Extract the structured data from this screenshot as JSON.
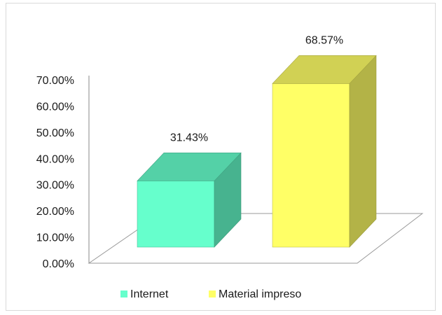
{
  "chart_data": {
    "type": "bar",
    "categories": [
      "Internet",
      "Material impreso"
    ],
    "values": [
      31.43,
      68.57
    ],
    "data_labels": [
      "31.43%",
      "68.57%"
    ],
    "ylim": [
      0,
      70
    ],
    "y_ticks": [
      "0.00%",
      "10.00%",
      "20.00%",
      "30.00%",
      "40.00%",
      "50.00%",
      "60.00%",
      "70.00%"
    ],
    "legend": {
      "placement": "bottom",
      "entries": [
        {
          "label": "Internet",
          "color": "#66ffcc"
        },
        {
          "label": "Material impreso",
          "color": "#ffff66"
        }
      ]
    },
    "style": "3d-column",
    "grid": false
  }
}
